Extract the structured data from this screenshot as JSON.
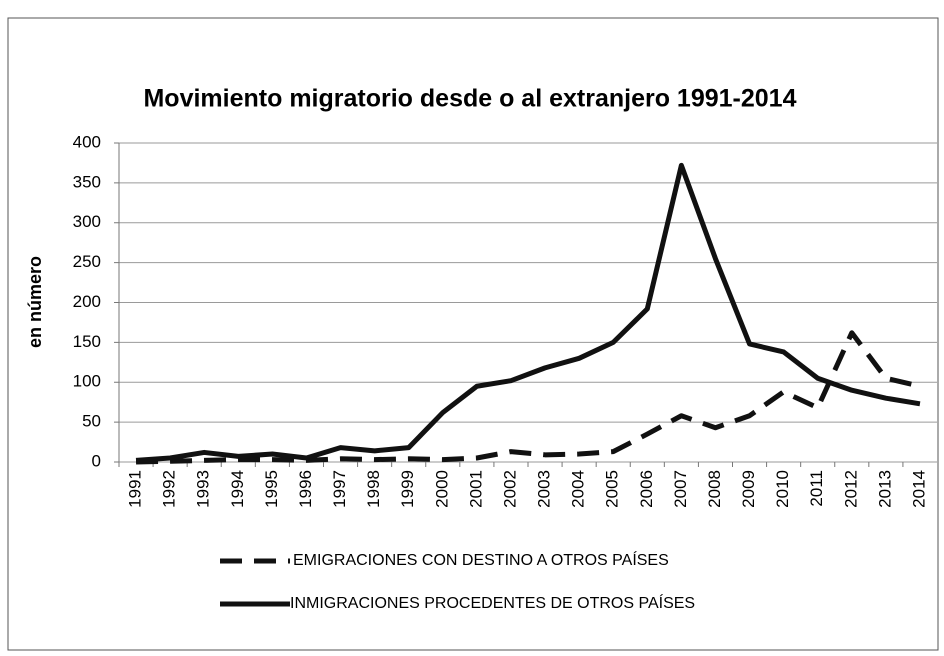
{
  "chart_data": {
    "type": "line",
    "title": "Movimiento migratorio desde o al extranjero 1991-2014",
    "y_label": "en número",
    "categories": [
      "1991",
      "1992",
      "1993",
      "1994",
      "1995",
      "1996",
      "1997",
      "1998",
      "1999",
      "2000",
      "2001",
      "2002",
      "2003",
      "2004",
      "2005",
      "2006",
      "2007",
      "2008",
      "2009",
      "2010",
      "2011",
      "2012",
      "2013",
      "2014"
    ],
    "series": [
      {
        "name": "EMIGRACIONES CON DESTINO A OTROS PAÍSES",
        "color": "#111111",
        "dash": true,
        "values": [
          0,
          1,
          2,
          3,
          3,
          2,
          4,
          3,
          4,
          3,
          5,
          13,
          9,
          10,
          13,
          35,
          58,
          43,
          58,
          88,
          68,
          162,
          105,
          95
        ]
      },
      {
        "name": "INMIGRACIONES PROCEDENTES DE OTROS PAÍSES",
        "color": "#111111",
        "dash": false,
        "values": [
          2,
          5,
          12,
          7,
          10,
          5,
          18,
          14,
          18,
          62,
          95,
          102,
          118,
          130,
          150,
          192,
          372,
          255,
          148,
          138,
          105,
          90,
          80,
          73
        ]
      }
    ],
    "ylim": [
      0,
      400
    ],
    "yticks": [
      0,
      50,
      100,
      150,
      200,
      250,
      300,
      350,
      400
    ],
    "grid": true
  }
}
